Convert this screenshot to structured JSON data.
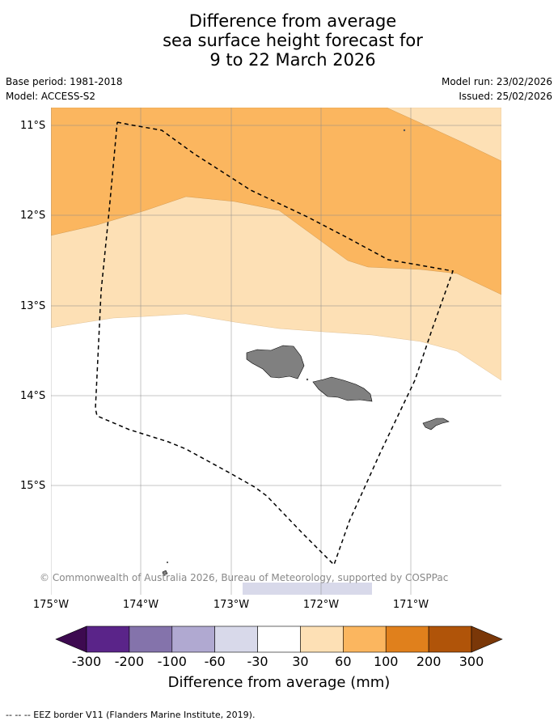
{
  "title_lines": [
    "Difference from average",
    "sea surface height forecast for",
    "9 to 22 March 2026"
  ],
  "meta": {
    "base_period": "Base period: 1981-2018",
    "model": "Model: ACCESS-S2",
    "model_run": "Model run: 23/02/2026",
    "issued": "Issued: 25/02/2026"
  },
  "map": {
    "lat_labels": [
      "11°S",
      "12°S",
      "13°S",
      "14°S",
      "15°S"
    ],
    "lon_labels": [
      "175°W",
      "174°W",
      "173°W",
      "172°W",
      "171°W"
    ],
    "copyright": "© Commonwealth of Australia 2026, Bureau of Meteorology, supported by COSPPac",
    "colors": {
      "band_60_100": "#fbb65f",
      "band_30_60": "#fde0b5",
      "band_neutral": "#ffffff",
      "land": "#808080",
      "band_neg30_neg60": "#d8d9ea"
    }
  },
  "colorbar": {
    "ticks": [
      "-300",
      "-200",
      "-100",
      "-60",
      "-30",
      "30",
      "60",
      "100",
      "200",
      "300"
    ],
    "colors": [
      "#3d0a50",
      "#5a2489",
      "#8473ab",
      "#b0a9d1",
      "#d8d9ea",
      "#ffffff",
      "#fde0b5",
      "#fbb65f",
      "#e0801c",
      "#b05409",
      "#7a3708"
    ],
    "title": "Difference from average (mm)"
  },
  "footer": "--  --  -- EEZ border V11 (Flanders Marine Institute, 2019)."
}
